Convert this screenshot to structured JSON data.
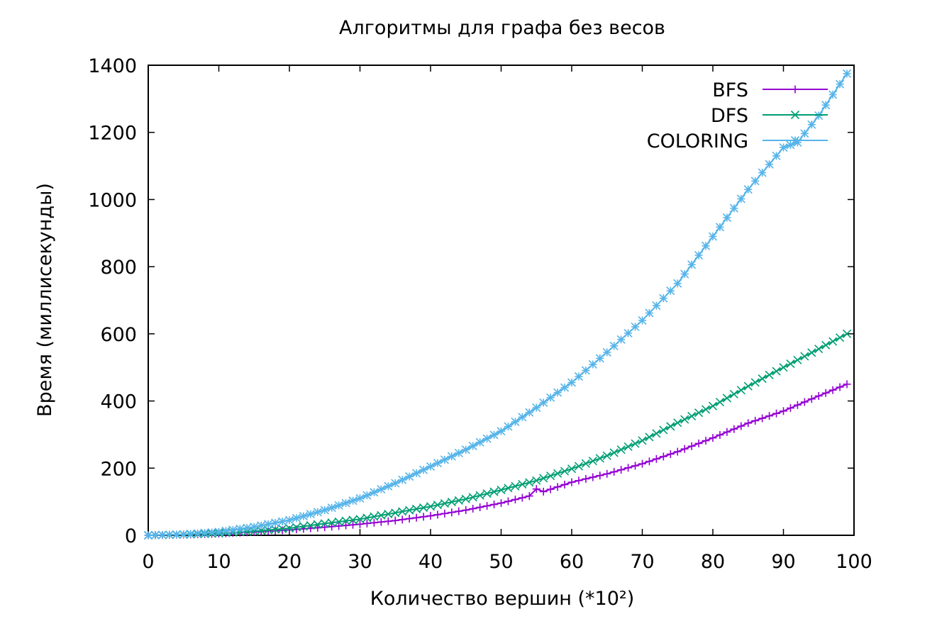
{
  "chart_data": {
    "type": "line",
    "title": "Алгоритмы для графа без весов",
    "xlabel": "Количество вершин (*10²)",
    "ylabel": "Время (миллисекунды)",
    "xlim": [
      0,
      100
    ],
    "ylim": [
      0,
      1400
    ],
    "xticks": [
      0,
      10,
      20,
      30,
      40,
      50,
      60,
      70,
      80,
      90,
      100
    ],
    "yticks": [
      0,
      200,
      400,
      600,
      800,
      1000,
      1200,
      1400
    ],
    "grid": false,
    "legend_position": "top-right",
    "series": [
      {
        "name": "BFS",
        "color": "#9400d3",
        "marker": "plus",
        "x": [
          0,
          5,
          10,
          15,
          20,
          25,
          30,
          35,
          40,
          45,
          50,
          54,
          55,
          56,
          60,
          65,
          70,
          75,
          80,
          85,
          90,
          95,
          99
        ],
        "y": [
          0,
          2,
          5,
          10,
          16,
          24,
          33,
          44,
          58,
          75,
          96,
          117,
          138,
          130,
          158,
          183,
          213,
          249,
          290,
          334,
          370,
          415,
          450
        ]
      },
      {
        "name": "DFS",
        "color": "#009e73",
        "marker": "cross",
        "x": [
          0,
          5,
          10,
          15,
          20,
          25,
          30,
          35,
          40,
          45,
          50,
          55,
          60,
          65,
          70,
          75,
          80,
          85,
          90,
          95,
          99
        ],
        "y": [
          0,
          2,
          6,
          12,
          21,
          35,
          48,
          67,
          86,
          108,
          135,
          163,
          198,
          237,
          282,
          335,
          385,
          444,
          500,
          555,
          600
        ]
      },
      {
        "name": "COLORING",
        "color": "#56b4e9",
        "marker": "star",
        "x": [
          0,
          5,
          10,
          15,
          20,
          25,
          30,
          35,
          40,
          45,
          50,
          55,
          60,
          65,
          70,
          75,
          80,
          85,
          90,
          92,
          95,
          99
        ],
        "y": [
          0,
          3,
          10,
          25,
          45,
          75,
          110,
          155,
          205,
          255,
          310,
          380,
          455,
          545,
          640,
          750,
          890,
          1030,
          1155,
          1170,
          1250,
          1375
        ]
      }
    ]
  }
}
